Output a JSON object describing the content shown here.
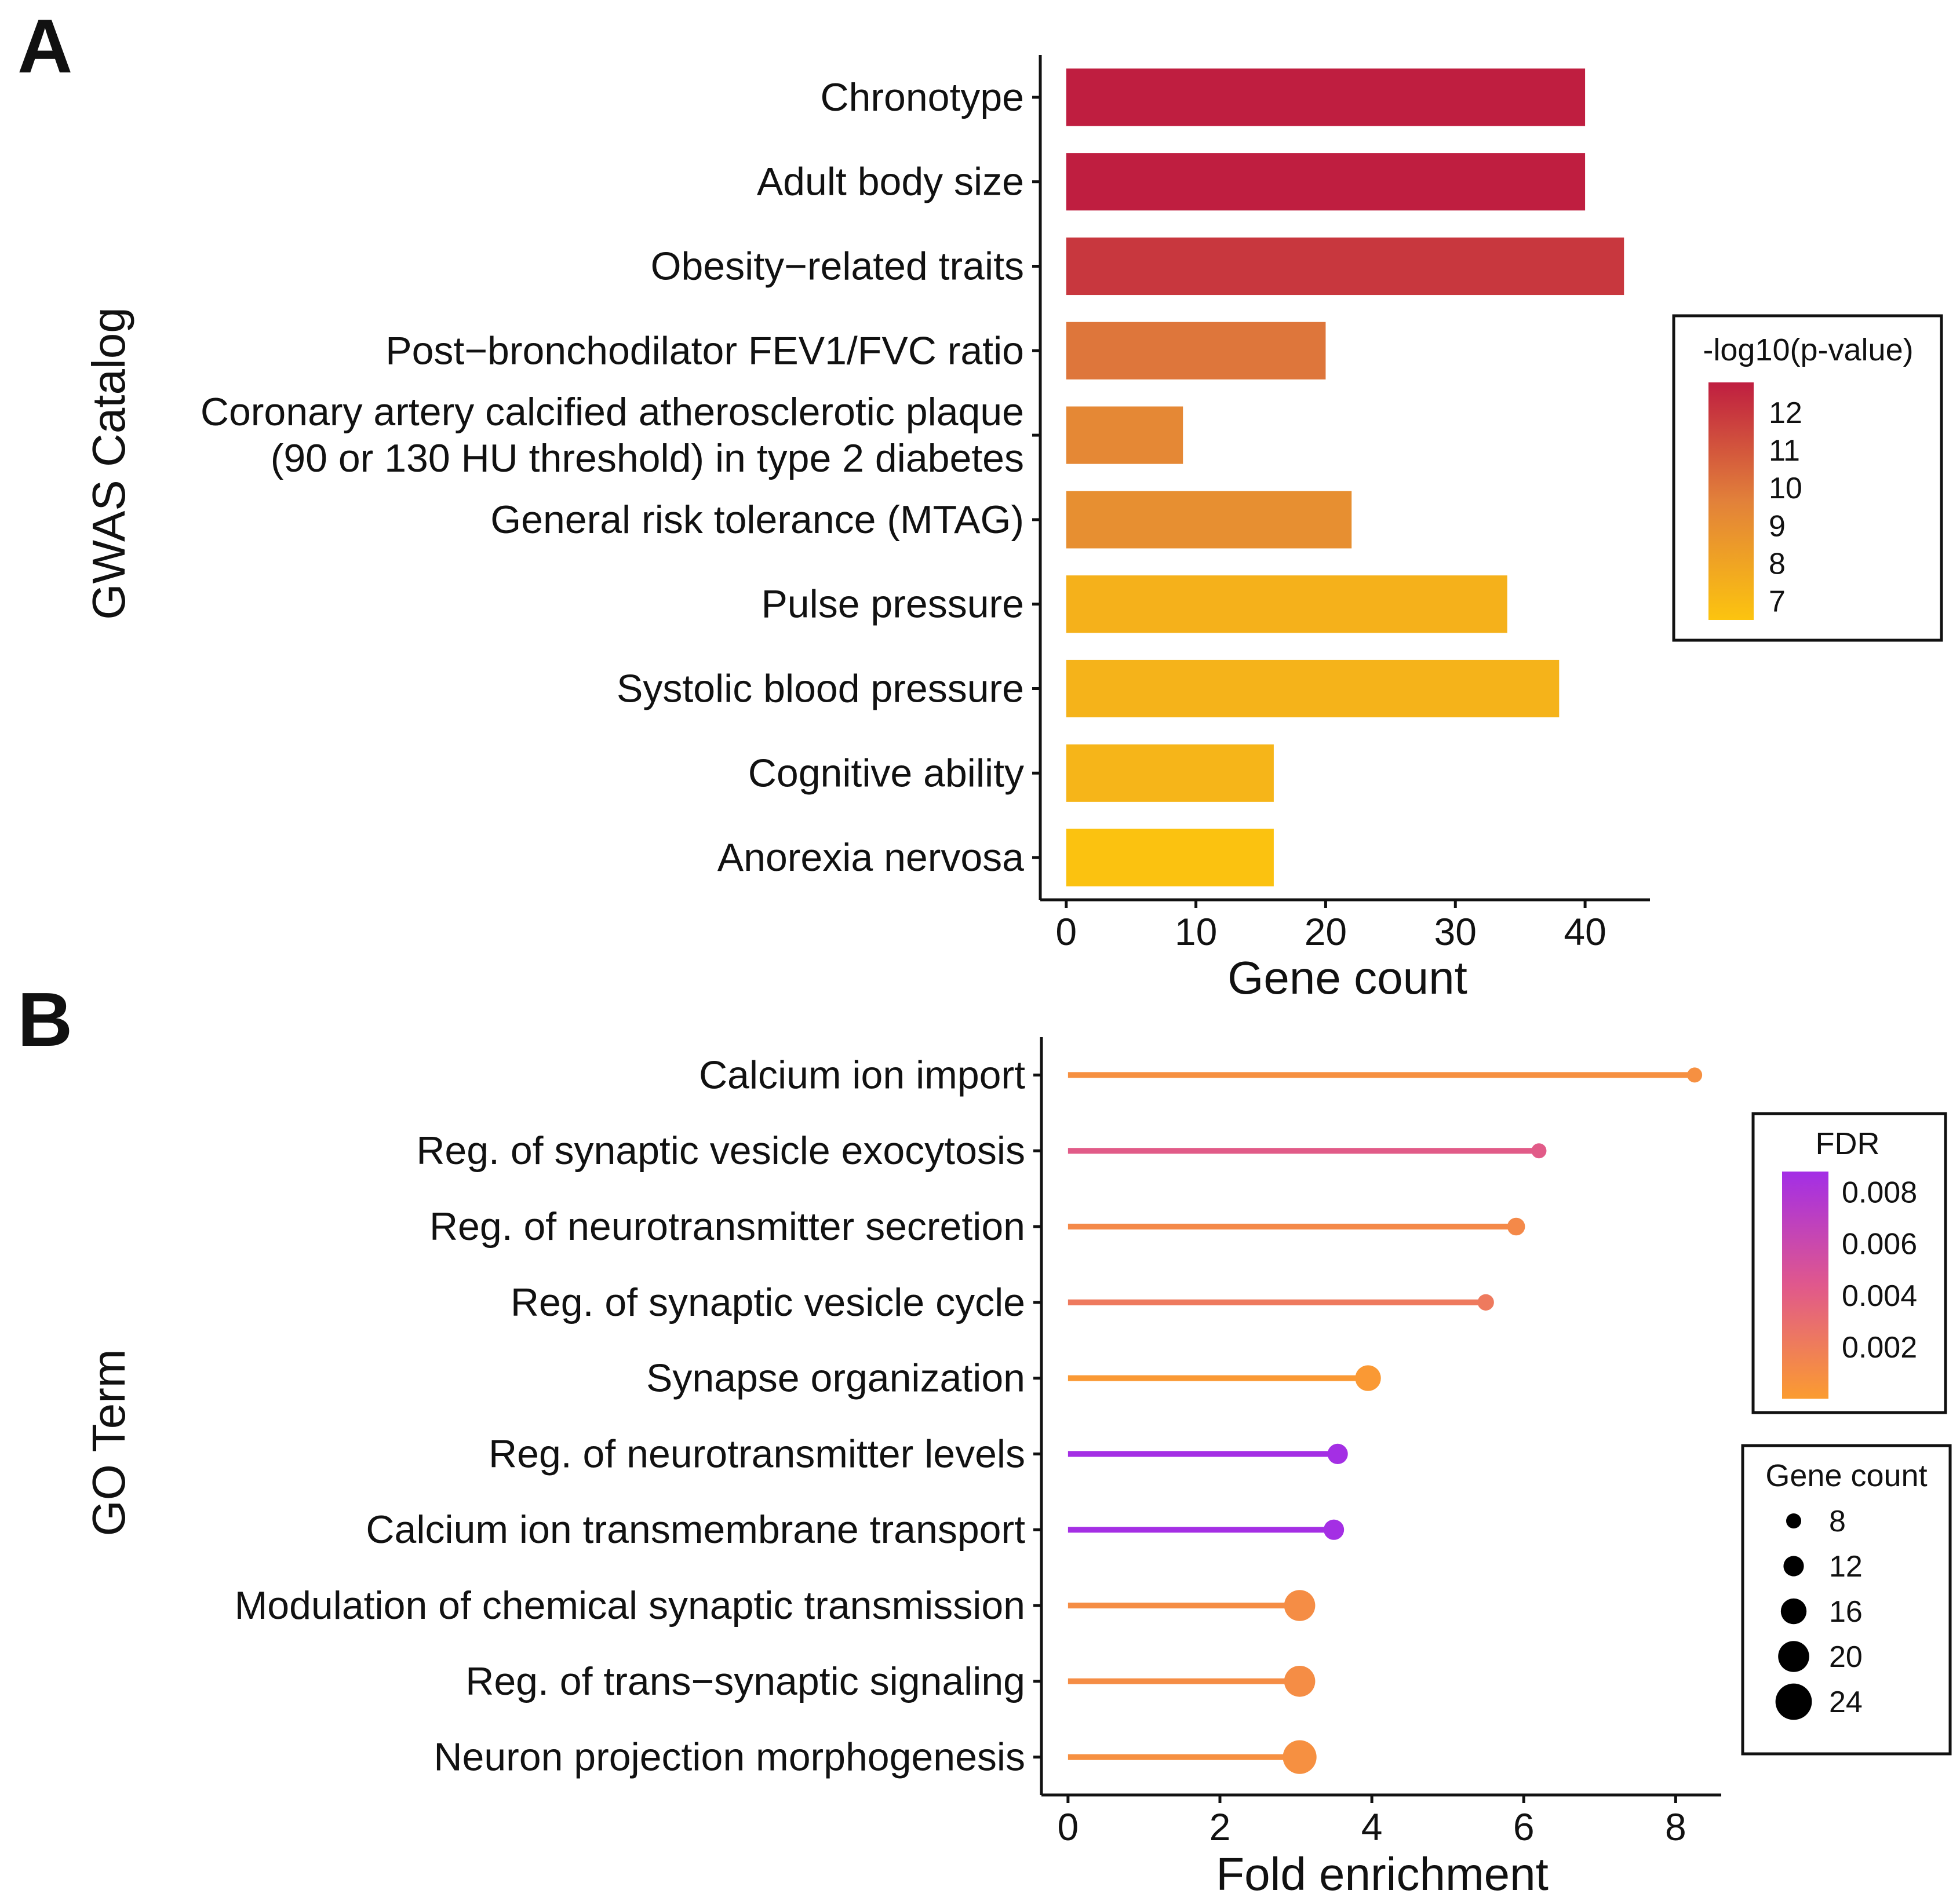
{
  "panel_a": {
    "letter": "A",
    "legend_title": "-log10(p-value)",
    "legend_ticks": [
      "12",
      "11",
      "10",
      "9",
      "8",
      "7"
    ],
    "legend_tick_values": [
      12,
      11,
      10,
      9,
      8,
      7
    ],
    "legend_range": [
      6.5,
      12.8
    ],
    "colors": {
      "low": "#FCC40F",
      "mid": "#E2813A",
      "high": "#BF1E40"
    }
  },
  "panel_b": {
    "letter": "B",
    "fdr_legend_title": "FDR",
    "fdr_ticks": [
      "0.008",
      "0.006",
      "0.004",
      "0.002"
    ],
    "fdr_tick_values": [
      0.008,
      0.006,
      0.004,
      0.002
    ],
    "fdr_range": [
      0.0,
      0.0088
    ],
    "size_legend_title": "Gene count",
    "size_ticks": [
      "8",
      "12",
      "16",
      "20",
      "24"
    ],
    "size_tick_values": [
      8,
      12,
      16,
      20,
      24
    ],
    "colors": {
      "low": "#FB9C30",
      "mid": "#E0588C",
      "high": "#A32EE6"
    }
  },
  "chart_data": [
    {
      "type": "bar",
      "orientation": "horizontal",
      "title": "",
      "xlabel": "Gene count",
      "ylabel": "GWAS Catalog",
      "xlim": [
        -2,
        45
      ],
      "xticks": [
        "0",
        "10",
        "20",
        "30",
        "40"
      ],
      "xtick_values": [
        0,
        10,
        20,
        30,
        40
      ],
      "categories": [
        [
          "Chronotype"
        ],
        [
          "Adult body size"
        ],
        [
          "Obesity−related traits"
        ],
        [
          "Post−bronchodilator FEV1/FVC ratio"
        ],
        [
          "Coronary artery calcified atherosclerotic plaque",
          "(90 or 130 HU threshold) in type 2 diabetes"
        ],
        [
          "General risk tolerance (MTAG)"
        ],
        [
          "Pulse pressure"
        ],
        [
          "Systolic blood pressure"
        ],
        [
          "Cognitive ability"
        ],
        [
          "Anorexia nervosa"
        ]
      ],
      "values": [
        40,
        40,
        43,
        20,
        9,
        22,
        34,
        38,
        16,
        16
      ],
      "color_values": [
        12.8,
        12.8,
        12.0,
        10.0,
        9.3,
        9.0,
        7.4,
        7.3,
        7.2,
        6.6
      ],
      "color_label": "-log10(p-value)"
    },
    {
      "type": "lollipop",
      "orientation": "horizontal",
      "title": "",
      "xlabel": "Fold enrichment",
      "ylabel": "GO Term",
      "xlim": [
        -0.35,
        8.6
      ],
      "xticks": [
        "0",
        "2",
        "4",
        "6",
        "8"
      ],
      "xtick_values": [
        0,
        2,
        4,
        6,
        8
      ],
      "categories": [
        "Calcium ion import",
        "Reg. of synaptic vesicle exocytosis",
        "Reg. of neurotransmitter secretion",
        "Reg. of synaptic vesicle cycle",
        "Synapse organization",
        "Reg. of neurotransmitter levels",
        "Calcium ion transmembrane transport",
        "Modulation of chemical synaptic transmission",
        "Reg. of trans−synaptic signaling",
        "Neuron projection morphogenesis"
      ],
      "values": [
        8.25,
        6.2,
        5.9,
        5.5,
        3.95,
        3.55,
        3.5,
        3.05,
        3.05,
        3.05
      ],
      "fdr": [
        0.0008,
        0.0042,
        0.0012,
        0.0022,
        0.0002,
        0.0087,
        0.0087,
        0.001,
        0.001,
        0.0008
      ],
      "gene_count": [
        8,
        8,
        10,
        9,
        16,
        12,
        12,
        20,
        20,
        22
      ]
    }
  ]
}
